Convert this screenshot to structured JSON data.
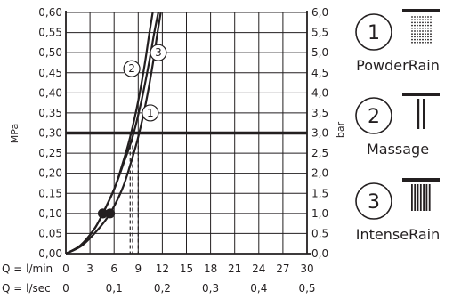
{
  "chart_data": {
    "type": "line",
    "x_axis_primary": {
      "label": "Q = l/min",
      "ticks": [
        0,
        3,
        6,
        9,
        12,
        15,
        18,
        21,
        24,
        27,
        30
      ],
      "range": [
        0,
        30
      ]
    },
    "x_axis_secondary": {
      "label": "Q = l/sec",
      "ticks": [
        "0",
        "0,1",
        "0,2",
        "0,3",
        "0,4",
        "0,5"
      ],
      "tick_values": [
        0,
        0.1,
        0.2,
        0.3,
        0.4,
        0.5
      ]
    },
    "y_axis_left": {
      "label": "MPa",
      "ticks": [
        "0,00",
        "0,05",
        "0,10",
        "0,15",
        "0,20",
        "0,25",
        "0,30",
        "0,35",
        "0,40",
        "0,45",
        "0,50",
        "0,55",
        "0,60"
      ],
      "range": [
        0,
        0.6
      ]
    },
    "y_axis_right": {
      "label": "bar",
      "ticks": [
        "0,0",
        "0,5",
        "1,0",
        "1,5",
        "2,0",
        "2,5",
        "3,0",
        "3,5",
        "4,0",
        "4,5",
        "5,0",
        "5,5",
        "6,0"
      ],
      "range": [
        0,
        6
      ]
    },
    "grid": true,
    "reference_line": {
      "y": 0.3
    },
    "series": [
      {
        "label": "1",
        "points": [
          [
            0,
            0
          ],
          [
            2,
            0.02
          ],
          [
            4,
            0.06
          ],
          [
            5.5,
            0.1
          ],
          [
            7,
            0.16
          ],
          [
            8,
            0.22
          ],
          [
            9,
            0.29
          ],
          [
            10,
            0.38
          ],
          [
            10.8,
            0.47
          ],
          [
            11.4,
            0.55
          ],
          [
            11.8,
            0.6
          ]
        ],
        "marker_at": 5.5,
        "dashed_drop_x": 9,
        "label_at": [
          10.5,
          0.35
        ]
      },
      {
        "label": "2",
        "points": [
          [
            0,
            0
          ],
          [
            1.8,
            0.02
          ],
          [
            3.5,
            0.06
          ],
          [
            4.6,
            0.1
          ],
          [
            6,
            0.16
          ],
          [
            7,
            0.22
          ],
          [
            8,
            0.29
          ],
          [
            9,
            0.38
          ],
          [
            9.8,
            0.47
          ],
          [
            10.4,
            0.55
          ],
          [
            10.8,
            0.6
          ]
        ],
        "marker_at": 4.6,
        "dashed_drop_x": 8,
        "label_at": [
          8.2,
          0.46
        ]
      },
      {
        "label": "3",
        "points": [
          [
            0,
            0
          ],
          [
            1.8,
            0.02
          ],
          [
            3.5,
            0.06
          ],
          [
            4.6,
            0.1
          ],
          [
            6,
            0.16
          ],
          [
            7.1,
            0.22
          ],
          [
            8.3,
            0.29
          ],
          [
            9.4,
            0.38
          ],
          [
            10.3,
            0.47
          ],
          [
            11,
            0.55
          ],
          [
            11.5,
            0.6
          ]
        ],
        "marker_at": 4.6,
        "dashed_drop_x": 8.3,
        "label_at": [
          11.5,
          0.5
        ]
      }
    ]
  },
  "legend": [
    {
      "number": "1",
      "name": "PowderRain",
      "icon": "powderrain-showerhead-icon"
    },
    {
      "number": "2",
      "name": "Massage",
      "icon": "massage-showerhead-icon"
    },
    {
      "number": "3",
      "name": "IntenseRain",
      "icon": "intenserain-showerhead-icon"
    }
  ],
  "colors": {
    "ink": "#231f20",
    "background": "#ffffff"
  }
}
